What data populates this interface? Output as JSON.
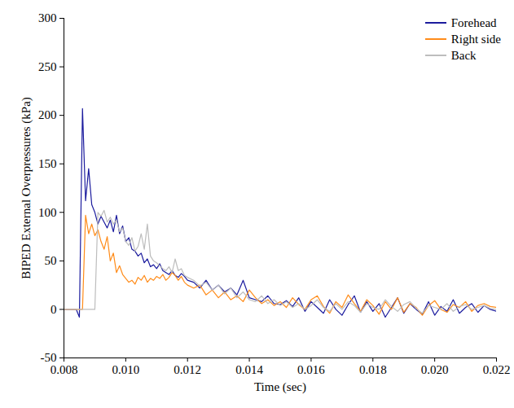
{
  "chart_data": {
    "type": "line",
    "x_label": "Time (sec)",
    "y_label": "BIPED External Overpressures (kPa)",
    "legend": "top-right",
    "xlim": [
      0.008,
      0.022
    ],
    "xticks": [
      0.008,
      {
        "value": 0.01,
        "label": "0.010"
      },
      0.012,
      0.014,
      0.016,
      0.018,
      {
        "value": 0.02,
        "label": "0.020"
      },
      0.022
    ],
    "ylim": [
      -50,
      300
    ],
    "yticks": [
      -50,
      0,
      50,
      100,
      150,
      200,
      250,
      300
    ],
    "x": [
      0.008,
      0.0081,
      0.0082,
      0.0083,
      0.0084,
      0.0085,
      0.0086,
      0.0087,
      0.0088,
      0.0089,
      0.009,
      0.0091,
      0.0092,
      0.0093,
      0.0094,
      0.0095,
      0.0096,
      0.0097,
      0.0098,
      0.0099,
      0.01,
      0.0101,
      0.0102,
      0.0103,
      0.0104,
      0.0105,
      0.0106,
      0.0107,
      0.0108,
      0.0109,
      0.011,
      0.0111,
      0.0112,
      0.0113,
      0.0114,
      0.0115,
      0.0116,
      0.0117,
      0.0118,
      0.0119,
      0.012,
      0.0122,
      0.0124,
      0.0126,
      0.0128,
      0.013,
      0.0132,
      0.0134,
      0.0136,
      0.0138,
      0.014,
      0.0142,
      0.0144,
      0.0146,
      0.0148,
      0.015,
      0.0152,
      0.0154,
      0.0156,
      0.0158,
      0.016,
      0.0162,
      0.0164,
      0.0166,
      0.0168,
      0.017,
      0.0172,
      0.0174,
      0.0176,
      0.0178,
      0.018,
      0.0182,
      0.0184,
      0.0186,
      0.0188,
      0.019,
      0.0192,
      0.0194,
      0.0196,
      0.0198,
      0.02,
      0.0202,
      0.0204,
      0.0206,
      0.0208,
      0.021,
      0.0212,
      0.0214,
      0.0216,
      0.0218,
      0.022
    ],
    "series": [
      {
        "name": "Forehead",
        "color": "#1c1c9e",
        "values": [
          0,
          0,
          0,
          0,
          0,
          -8,
          207,
          112,
          145,
          108,
          100,
          88,
          96,
          90,
          84,
          92,
          80,
          97,
          78,
          86,
          70,
          74,
          62,
          60,
          55,
          58,
          48,
          52,
          44,
          46,
          42,
          47,
          40,
          38,
          36,
          40,
          35,
          33,
          37,
          34,
          30,
          28,
          22,
          30,
          20,
          25,
          18,
          22,
          15,
          30,
          12,
          10,
          8,
          14,
          6,
          5,
          9,
          3,
          12,
          -2,
          8,
          2,
          -4,
          10,
          0,
          -6,
          5,
          14,
          -3,
          8,
          -2,
          6,
          -8,
          2,
          12,
          -4,
          6,
          0,
          -5,
          8,
          -6,
          3,
          -2,
          10,
          -4,
          2,
          6,
          -3,
          4,
          0,
          -2
        ]
      },
      {
        "name": "Right side",
        "color": "#ff8c1a",
        "values": [
          0,
          0,
          0,
          0,
          0,
          0,
          0,
          97,
          78,
          88,
          76,
          82,
          70,
          62,
          75,
          50,
          58,
          38,
          45,
          36,
          32,
          28,
          30,
          26,
          33,
          30,
          35,
          28,
          32,
          30,
          34,
          32,
          36,
          30,
          33,
          38,
          35,
          30,
          34,
          28,
          25,
          22,
          25,
          15,
          20,
          12,
          18,
          10,
          14,
          8,
          20,
          12,
          6,
          10,
          4,
          8,
          2,
          12,
          5,
          0,
          10,
          14,
          3,
          -4,
          8,
          2,
          15,
          6,
          -2,
          10,
          4,
          -5,
          8,
          0,
          12,
          -3,
          6,
          2,
          -6,
          4,
          9,
          0,
          -3,
          5,
          2,
          8,
          -2,
          4,
          6,
          3,
          2
        ]
      },
      {
        "name": "Back",
        "color": "#bdbdbd",
        "values": [
          0,
          0,
          0,
          0,
          0,
          0,
          0,
          0,
          0,
          0,
          0,
          100,
          96,
          102,
          90,
          95,
          88,
          92,
          80,
          84,
          70,
          66,
          74,
          60,
          65,
          78,
          62,
          88,
          55,
          50,
          48,
          45,
          42,
          40,
          44,
          38,
          52,
          40,
          42,
          35,
          33,
          30,
          24,
          28,
          20,
          25,
          16,
          22,
          12,
          18,
          10,
          8,
          14,
          6,
          10,
          4,
          8,
          2,
          6,
          0,
          4,
          10,
          2,
          -2,
          6,
          0,
          8,
          4,
          -3,
          6,
          2,
          0,
          10,
          3,
          -2,
          5,
          8,
          1,
          -4,
          4,
          2,
          0,
          6,
          -2,
          3,
          5,
          0,
          2,
          4,
          1,
          0
        ]
      }
    ]
  }
}
